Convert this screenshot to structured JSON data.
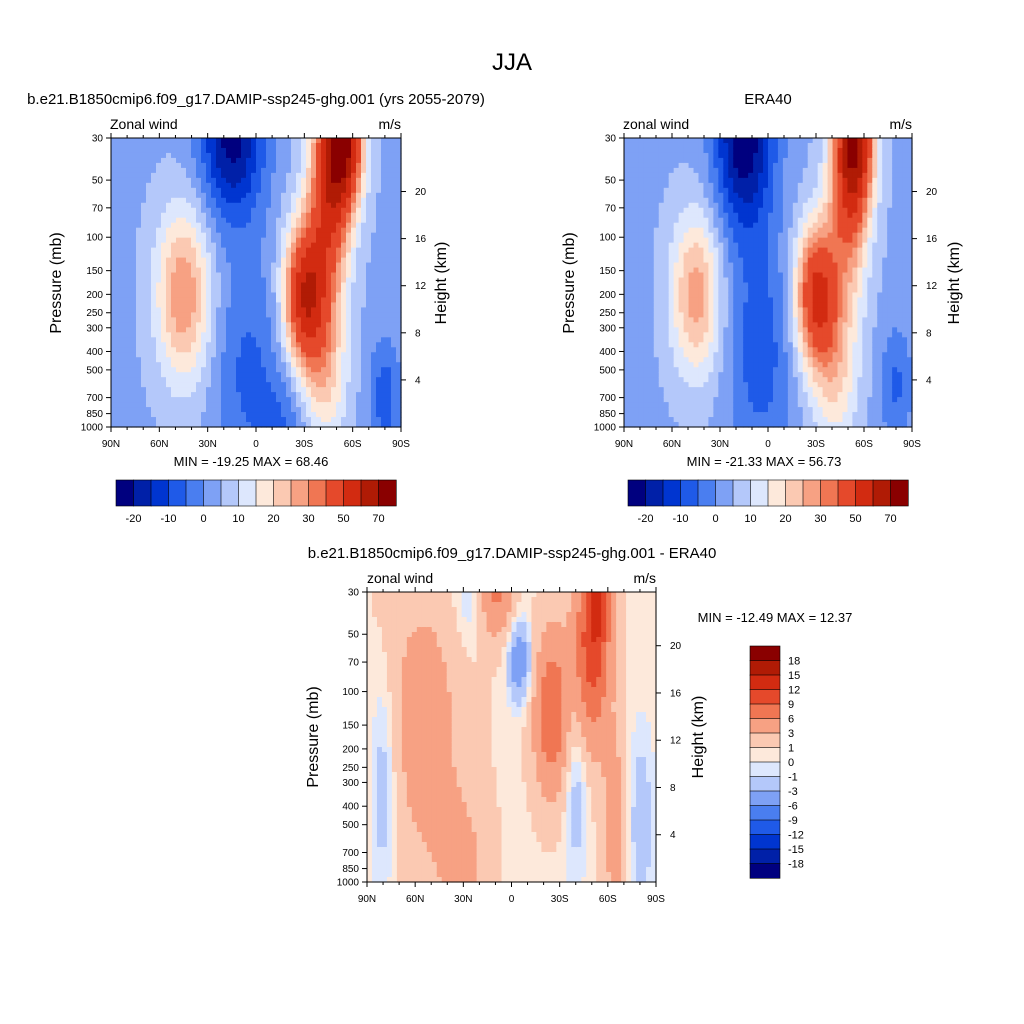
{
  "page": {
    "title": "JJA"
  },
  "palettes": {
    "model": [
      "#00007f",
      "#0020a8",
      "#0035d0",
      "#1f5ae8",
      "#4a7ef0",
      "#7ea1f5",
      "#b4c8fa",
      "#dde7fd",
      "#fde9db",
      "#fbc9b2",
      "#f7a183",
      "#f07653",
      "#e5492b",
      "#d22b11",
      "#b01b05",
      "#8a0000"
    ],
    "diff": [
      "#00007f",
      "#0020a8",
      "#0035d0",
      "#1f5ae8",
      "#4a7ef0",
      "#7ea1f5",
      "#b4c8fa",
      "#dde7fd",
      "#fde9db",
      "#fbc9b2",
      "#f7a183",
      "#f07653",
      "#e5492b",
      "#d22b11",
      "#b01b05",
      "#8a0000"
    ]
  },
  "panels": [
    {
      "id": "model",
      "title": "b.e21.B1850cmip6.f09_g17.DAMIP-ssp245-ghg.001 (yrs 2055-2079)",
      "left_label": "Zonal wind",
      "right_label": "m/s",
      "ylabel": "Pressure (mb)",
      "y2label": "Height (km)",
      "stats": "MIN = -19.25  MAX =  68.46",
      "chart_data": {
        "type": "heatmap",
        "x_ticks": [
          "90N",
          "60N",
          "30N",
          "0",
          "30S",
          "60S",
          "90S"
        ],
        "x_values": [
          90,
          60,
          30,
          0,
          -30,
          -60,
          -90
        ],
        "y_ticks": [
          "30",
          "50",
          "70",
          "100",
          "150",
          "200",
          "250",
          "300",
          "400",
          "500",
          "700",
          "850",
          "1000"
        ],
        "y_values": [
          30,
          50,
          70,
          100,
          150,
          200,
          250,
          300,
          400,
          500,
          700,
          850,
          1000
        ],
        "y2_ticks": [
          "20",
          "16",
          "12",
          "8",
          "4"
        ],
        "y2_values": [
          20,
          16,
          12,
          8,
          4
        ],
        "ylim": [
          1000,
          30
        ],
        "xlim": [
          90,
          -90
        ],
        "colorbar_labels": [
          "-20",
          "-10",
          "0",
          "10",
          "20",
          "30",
          "50",
          "70"
        ],
        "features": [
          {
            "lat": 45,
            "p": 200,
            "amp": 26,
            "slat": 12,
            "slp": 0.75
          },
          {
            "lat": 5,
            "p": 500,
            "amp": -10,
            "slat": 15,
            "slp": 1.0
          },
          {
            "lat": 15,
            "p": 30,
            "amp": -26,
            "slat": 14,
            "slp": 0.7
          },
          {
            "lat": -20,
            "p": 1000,
            "amp": -8,
            "slat": 12,
            "slp": 0.5
          },
          {
            "lat": -30,
            "p": 200,
            "amp": 46,
            "slat": 9,
            "slp": 0.6
          },
          {
            "lat": -45,
            "p": 60,
            "amp": 38,
            "slat": 9,
            "slp": 0.9
          },
          {
            "lat": -55,
            "p": 30,
            "amp": 54,
            "slat": 8,
            "slp": 0.6
          },
          {
            "lat": -42,
            "p": 500,
            "amp": 18,
            "slat": 10,
            "slp": 0.7
          },
          {
            "lat": -80,
            "p": 700,
            "amp": -12,
            "slat": 7,
            "slp": 0.5
          }
        ],
        "base": -1
      }
    },
    {
      "id": "obs",
      "title": "ERA40",
      "left_label": "zonal wind",
      "right_label": "m/s",
      "ylabel": "Pressure (mb)",
      "y2label": "Height (km)",
      "stats": "MIN = -21.33  MAX =  56.73",
      "chart_data": {
        "type": "heatmap",
        "x_ticks": [
          "90N",
          "60N",
          "30N",
          "0",
          "30S",
          "60S",
          "90S"
        ],
        "x_values": [
          90,
          60,
          30,
          0,
          -30,
          -60,
          -90
        ],
        "y_ticks": [
          "30",
          "50",
          "70",
          "100",
          "150",
          "200",
          "250",
          "300",
          "400",
          "500",
          "700",
          "850",
          "1000"
        ],
        "y_values": [
          30,
          50,
          70,
          100,
          150,
          200,
          250,
          300,
          400,
          500,
          700,
          850,
          1000
        ],
        "y2_ticks": [
          "20",
          "16",
          "12",
          "8",
          "4"
        ],
        "y2_values": [
          20,
          16,
          12,
          8,
          4
        ],
        "ylim": [
          1000,
          30
        ],
        "xlim": [
          90,
          -90
        ],
        "colorbar_labels": [
          "-20",
          "-10",
          "0",
          "10",
          "20",
          "30",
          "50",
          "70"
        ],
        "features": [
          {
            "lat": 45,
            "p": 200,
            "amp": 24,
            "slat": 11,
            "slp": 0.7
          },
          {
            "lat": 5,
            "p": 400,
            "amp": -12,
            "slat": 14,
            "slp": 1.0
          },
          {
            "lat": 15,
            "p": 30,
            "amp": -28,
            "slat": 13,
            "slp": 0.8
          },
          {
            "lat": -30,
            "p": 200,
            "amp": 42,
            "slat": 9,
            "slp": 0.6
          },
          {
            "lat": -50,
            "p": 60,
            "amp": 30,
            "slat": 9,
            "slp": 0.9
          },
          {
            "lat": -55,
            "p": 30,
            "amp": 44,
            "slat": 8,
            "slp": 0.6
          },
          {
            "lat": -42,
            "p": 500,
            "amp": 16,
            "slat": 10,
            "slp": 0.7
          },
          {
            "lat": -80,
            "p": 600,
            "amp": -10,
            "slat": 7,
            "slp": 0.5
          }
        ],
        "base": -1
      }
    },
    {
      "id": "diff",
      "title": "b.e21.B1850cmip6.f09_g17.DAMIP-ssp245-ghg.001 - ERA40",
      "left_label": "zonal wind",
      "right_label": "m/s",
      "ylabel": "Pressure (mb)",
      "y2label": "Height (km)",
      "stats": "MIN = -12.49  MAX =  12.37",
      "chart_data": {
        "type": "heatmap",
        "x_ticks": [
          "90N",
          "60N",
          "30N",
          "0",
          "30S",
          "60S",
          "90S"
        ],
        "x_values": [
          90,
          60,
          30,
          0,
          -30,
          -60,
          -90
        ],
        "y_ticks": [
          "30",
          "50",
          "70",
          "100",
          "150",
          "200",
          "250",
          "300",
          "400",
          "500",
          "700",
          "850",
          "1000"
        ],
        "y_values": [
          30,
          50,
          70,
          100,
          150,
          200,
          250,
          300,
          400,
          500,
          700,
          850,
          1000
        ],
        "y2_ticks": [
          "20",
          "16",
          "12",
          "8",
          "4"
        ],
        "y2_values": [
          20,
          16,
          12,
          8,
          4
        ],
        "ylim": [
          1000,
          30
        ],
        "xlim": [
          90,
          -90
        ],
        "colorbar_labels": [
          "18",
          "15",
          "12",
          "9",
          "6",
          "3",
          "1",
          "0",
          "-1",
          "-3",
          "-6",
          "-9",
          "-12",
          "-15",
          "-18"
        ],
        "features": [
          {
            "lat": 55,
            "p": 150,
            "amp": 3.5,
            "slat": 20,
            "slp": 1.4
          },
          {
            "lat": 80,
            "p": 300,
            "amp": -3.5,
            "slat": 6,
            "slp": 1.0
          },
          {
            "lat": 30,
            "p": 800,
            "amp": 2.5,
            "slat": 12,
            "slp": 0.6
          },
          {
            "lat": 25,
            "p": 30,
            "amp": -2.5,
            "slat": 8,
            "slp": 0.5
          },
          {
            "lat": 10,
            "p": 30,
            "amp": 6,
            "slat": 8,
            "slp": 0.4
          },
          {
            "lat": -5,
            "p": 70,
            "amp": -6,
            "slat": 5,
            "slp": 0.35
          },
          {
            "lat": -25,
            "p": 130,
            "amp": 8,
            "slat": 8,
            "slp": 0.7
          },
          {
            "lat": -50,
            "p": 60,
            "amp": 10,
            "slat": 8,
            "slp": 0.8
          },
          {
            "lat": -55,
            "p": 30,
            "amp": 7,
            "slat": 5,
            "slp": 0.4
          },
          {
            "lat": -40,
            "p": 300,
            "amp": -3,
            "slat": 5,
            "slp": 0.8
          },
          {
            "lat": -65,
            "p": 500,
            "amp": 4,
            "slat": 6,
            "slp": 0.8
          },
          {
            "lat": -80,
            "p": 500,
            "amp": -3,
            "slat": 6,
            "slp": 0.8
          }
        ],
        "base": 0.6
      }
    }
  ]
}
